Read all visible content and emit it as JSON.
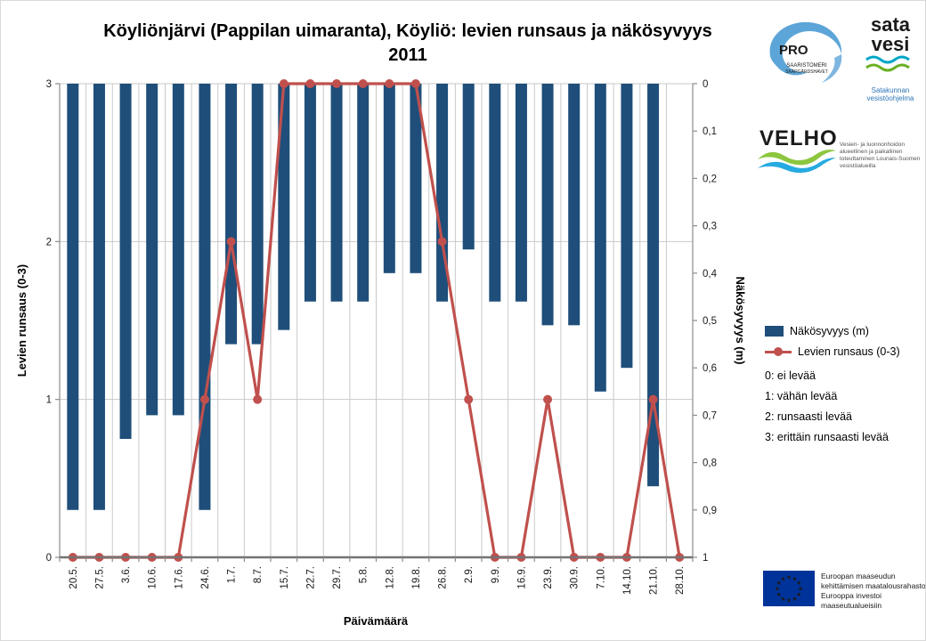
{
  "title": {
    "line1": "Köyliönjärvi (Pappilan uimaranta), Köyliö: levien runsaus ja näkösyvyys",
    "line2": "2011"
  },
  "chart_data": {
    "type": "bar",
    "subtype": "bar+line combo, bars hang from top on inverted secondary axis",
    "categories": [
      "20.5.",
      "27.5.",
      "3.6.",
      "10.6.",
      "17.6.",
      "24.6.",
      "1.7.",
      "8.7.",
      "15.7.",
      "22.7.",
      "29.7.",
      "5.8.",
      "12.8.",
      "19.8.",
      "26.8.",
      "2.9.",
      "9.9.",
      "16.9.",
      "23.9.",
      "30.9.",
      "7.10.",
      "14.10.",
      "21.10.",
      "28.10."
    ],
    "series": [
      {
        "name": "Näkösyvyys (m)",
        "type": "bar",
        "axis": "right",
        "color": "#1F4E7A",
        "values": [
          0.9,
          0.9,
          0.75,
          0.7,
          0.7,
          0.9,
          0.55,
          0.55,
          0.52,
          0.46,
          0.46,
          0.46,
          0.4,
          0.4,
          0.46,
          0.35,
          0.46,
          0.46,
          0.51,
          0.51,
          0.65,
          0.6,
          0.85,
          null
        ]
      },
      {
        "name": "Levien runsaus (0-3)",
        "type": "line",
        "axis": "left",
        "color": "#C0504D",
        "values": [
          0,
          0,
          0,
          0,
          0,
          1,
          2,
          1,
          3,
          3,
          3,
          3,
          3,
          3,
          2,
          1,
          0,
          0,
          1,
          0,
          0,
          0,
          1,
          0
        ]
      }
    ],
    "xlabel": "Päivämäärä",
    "ylabel_left": "Levien runsaus (0-3)",
    "ylabel_right": "Näkösyvyys (m)",
    "ylim_left": [
      0,
      3
    ],
    "ylim_right": [
      0,
      1
    ],
    "right_axis_inverted": true,
    "grid": "horizontal at left-axis units, vertical at category boundaries",
    "legend_position": "right",
    "left_ticks": [
      "3",
      "2",
      "1",
      "0"
    ],
    "right_ticks": [
      "0",
      "0,1",
      "0,2",
      "0,3",
      "0,4",
      "0,5",
      "0,6",
      "0,7",
      "0,8",
      "0,9",
      "1"
    ]
  },
  "legend": {
    "items": [
      {
        "label": "Näkösyvyys (m)",
        "color": "#1F4E7A",
        "kind": "bar"
      },
      {
        "label": "Levien runsaus (0-3)",
        "color": "#C0504D",
        "kind": "line-marker"
      }
    ],
    "notes": [
      "0: ei levää",
      "1: vähän levää",
      "2: runsaasti levää",
      "3: erittäin runsaasti levää"
    ]
  },
  "logos": {
    "pro": {
      "text": "PRO",
      "caption1": "SAARISTOMERI",
      "caption2": "SKÄRGÅRDSHAVET"
    },
    "satavesi": {
      "word1": "sata",
      "word2": "vesi",
      "caption_line1": "Satakunnan",
      "caption_line2": "vesistöohjelma"
    },
    "velho": {
      "text": "VELHO",
      "caption": "Vesien- ja luonnonhoidon alueellinen ja paikallinen toteuttaminen Lounais-Suomen vesistöalueilla"
    }
  },
  "eu": {
    "lines": [
      "Euroopan maaseudun",
      "kehittämisen maatalousrahasto:",
      "Eurooppa investoi maaseutualueisiin"
    ],
    "flag_blue": "#003399",
    "star_yellow": "#FFCC00"
  },
  "colors": {
    "bar": "#1F4E7A",
    "line": "#C0504D",
    "gridline": "#C9C9C9",
    "axis": "#8C8C8C",
    "axis_bottom": "#737373"
  }
}
